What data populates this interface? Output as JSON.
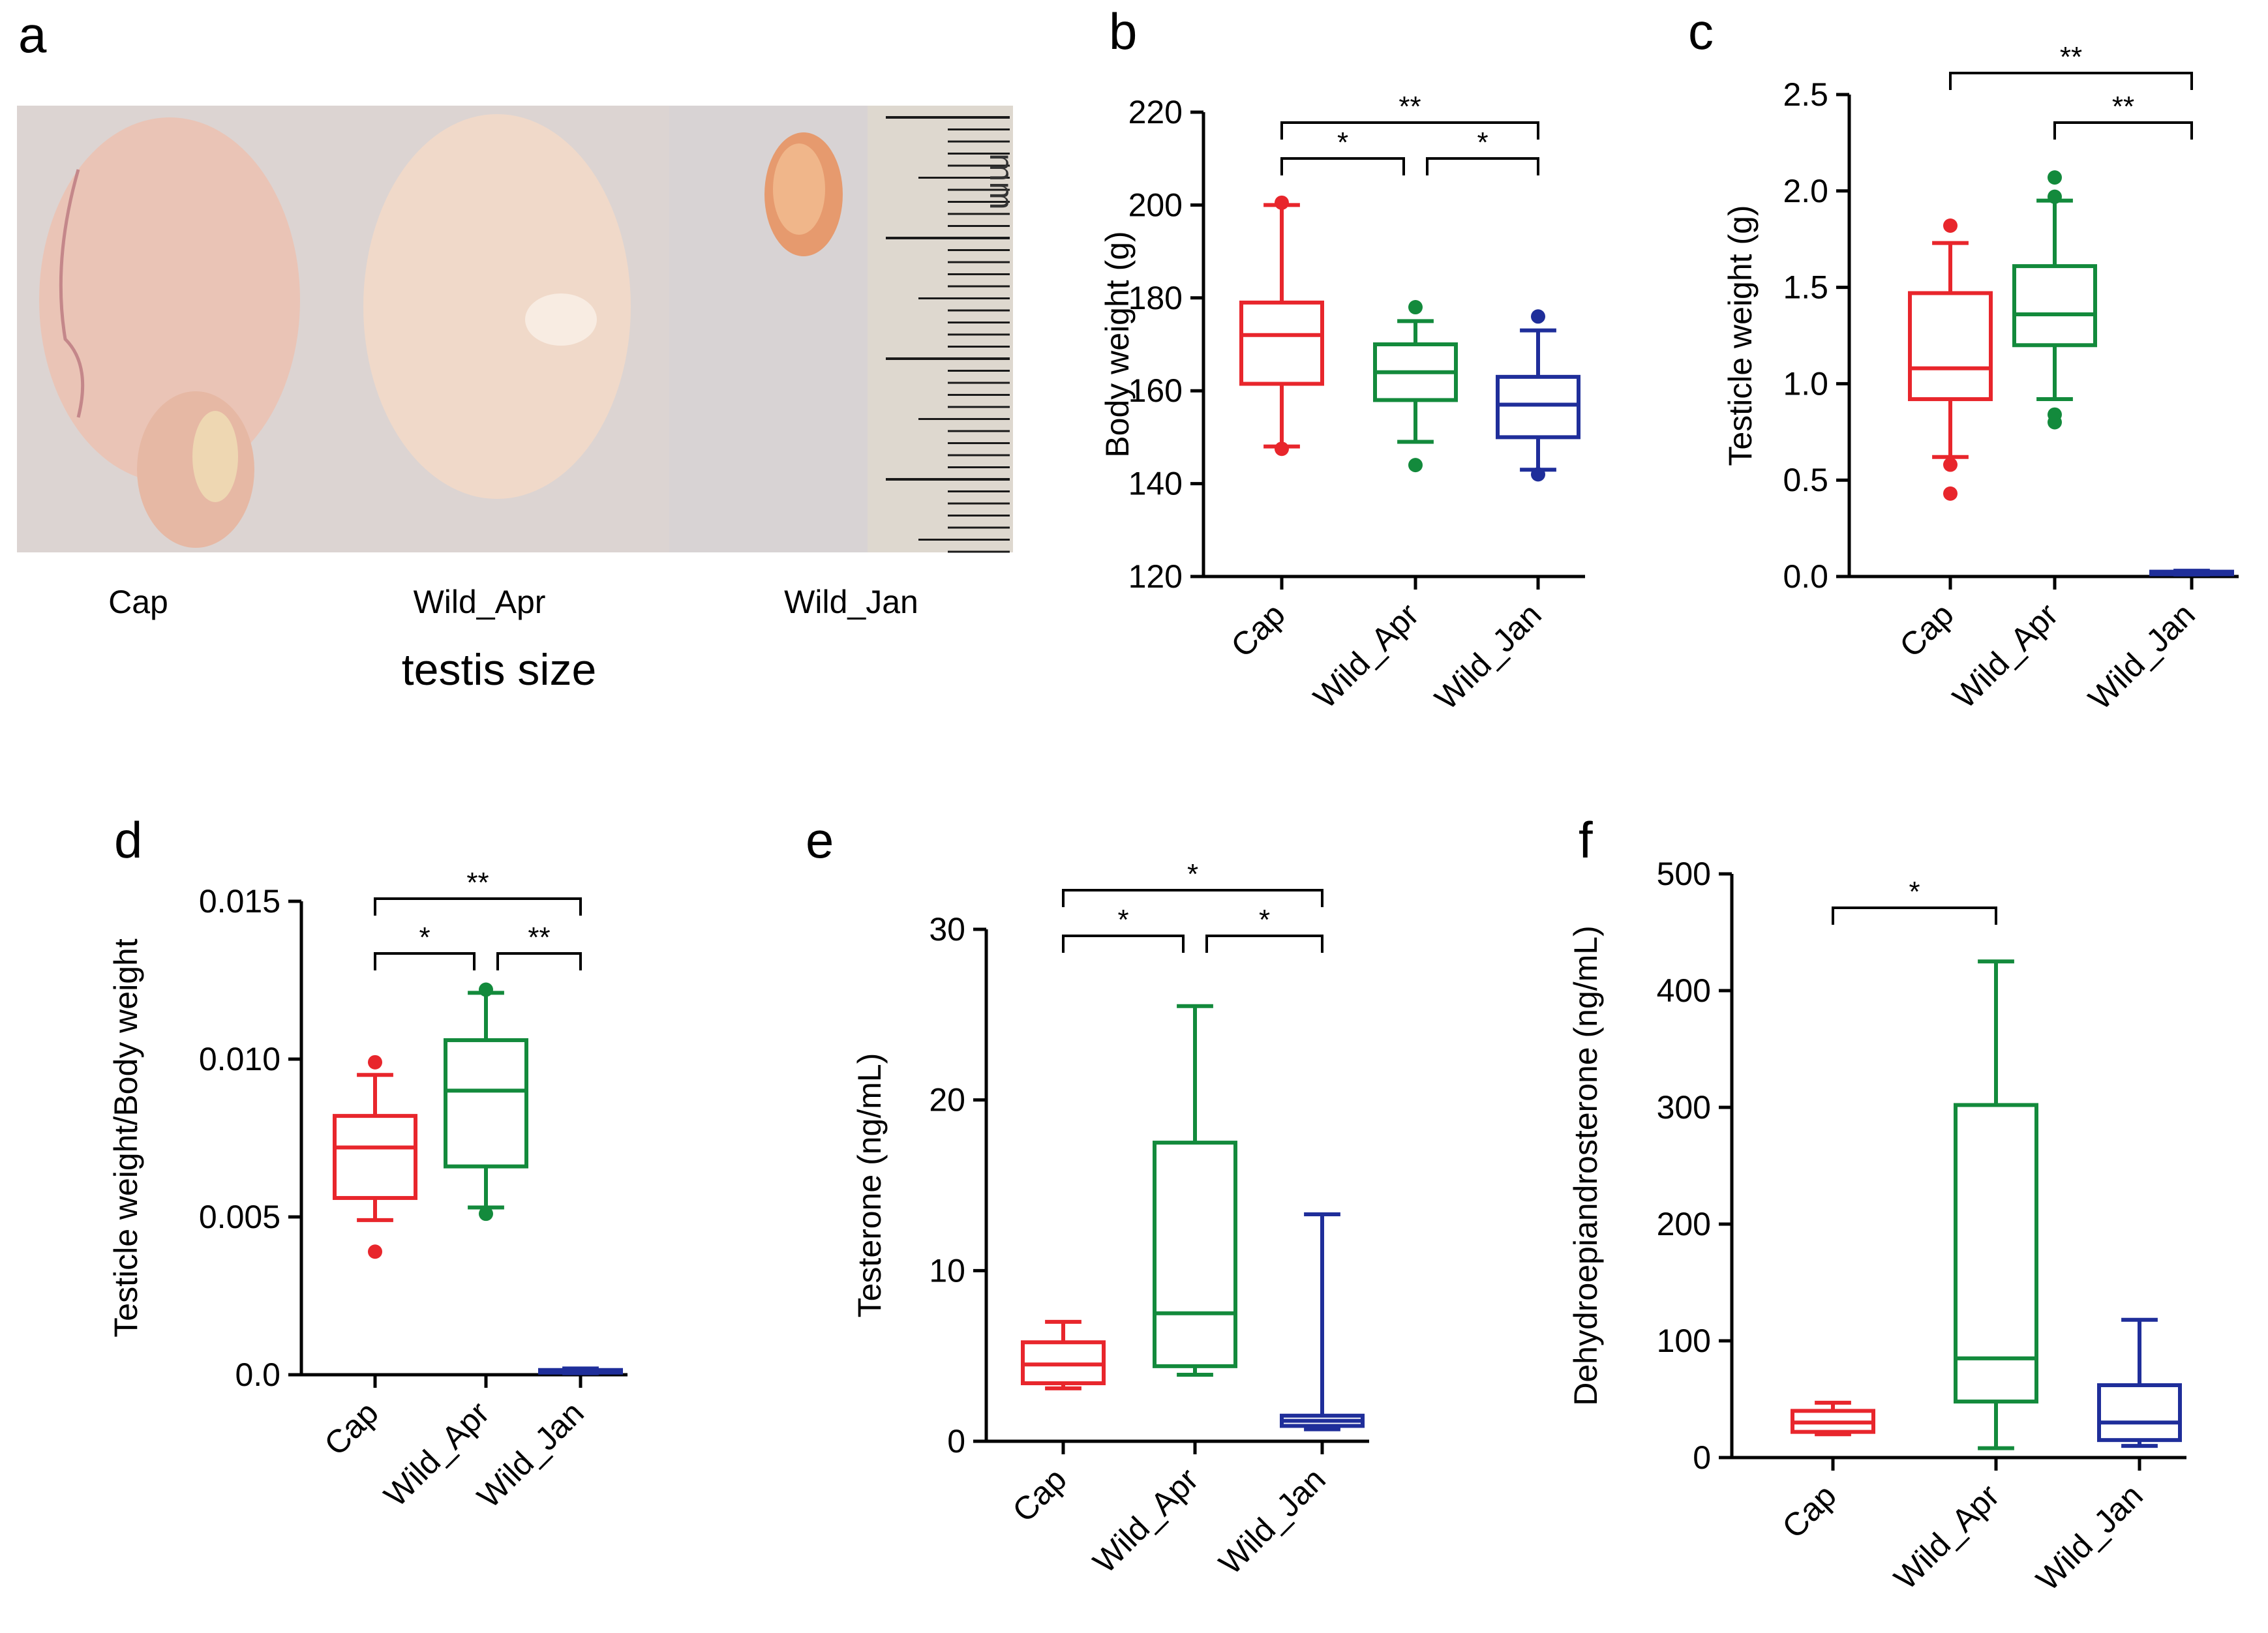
{
  "colors": {
    "Cap": "#e8262c",
    "Wild_Apr": "#138a3c",
    "Wild_Jan": "#1f2e9a",
    "axis": "#000000"
  },
  "panel_a": {
    "letter": "a",
    "caption": "testis size",
    "labels": [
      "Cap",
      "Wild_Apr",
      "Wild_Jan"
    ],
    "ruler_unit": "mm"
  },
  "chart_data": [
    {
      "id": "b",
      "letter": "b",
      "type": "boxplot",
      "ylabel": "Body weight (g)",
      "categories": [
        "Cap",
        "Wild_Apr",
        "Wild_Jan"
      ],
      "ylim": [
        120,
        220
      ],
      "yticks": [
        "120",
        "140",
        "160",
        "180",
        "200",
        "220"
      ],
      "boxes": [
        {
          "group": "Cap",
          "whisker_low": 148,
          "q1": 161.5,
          "median": 172,
          "q3": 179,
          "whisker_high": 200,
          "outliers": [
            147.5,
            200.5
          ]
        },
        {
          "group": "Wild_Apr",
          "whisker_low": 149,
          "q1": 158,
          "median": 164,
          "q3": 170,
          "whisker_high": 175,
          "outliers": [
            144,
            178
          ]
        },
        {
          "group": "Wild_Jan",
          "whisker_low": 143,
          "q1": 150,
          "median": 157,
          "q3": 163,
          "whisker_high": 173,
          "outliers": [
            142,
            176
          ]
        }
      ],
      "brackets": [
        {
          "from": 0,
          "to": 2,
          "label": "**"
        },
        {
          "from": 0,
          "to": 1,
          "label": "*"
        },
        {
          "from": 1,
          "to": 2,
          "label": "*"
        }
      ]
    },
    {
      "id": "c",
      "letter": "c",
      "type": "boxplot",
      "ylabel": "Testicle weight (g)",
      "categories": [
        "Cap",
        "Wild_Apr",
        "Wild_Jan"
      ],
      "ylim": [
        0,
        2.5
      ],
      "yticks": [
        "0.0",
        "0.5",
        "1.0",
        "1.5",
        "2.0",
        "2.5"
      ],
      "boxes": [
        {
          "group": "Cap",
          "whisker_low": 0.62,
          "q1": 0.92,
          "median": 1.08,
          "q3": 1.47,
          "whisker_high": 1.73,
          "outliers": [
            0.43,
            0.58,
            1.82
          ]
        },
        {
          "group": "Wild_Apr",
          "whisker_low": 0.92,
          "q1": 1.2,
          "median": 1.36,
          "q3": 1.61,
          "whisker_high": 1.95,
          "outliers": [
            0.8,
            0.84,
            1.97,
            2.07
          ]
        },
        {
          "group": "Wild_Jan",
          "whisker_low": 0.01,
          "q1": 0.015,
          "median": 0.02,
          "q3": 0.025,
          "whisker_high": 0.03,
          "outliers": []
        }
      ],
      "brackets": [
        {
          "from": 0,
          "to": 2,
          "label": "**"
        },
        {
          "from": 1,
          "to": 2,
          "label": "**"
        }
      ]
    },
    {
      "id": "d",
      "letter": "d",
      "type": "boxplot",
      "ylabel": "Testicle weight/Body weight",
      "categories": [
        "Cap",
        "Wild_Apr",
        "Wild_Jan"
      ],
      "ylim": [
        0,
        0.015
      ],
      "yticks": [
        "0.0",
        "0.005",
        "0.010",
        "0.015"
      ],
      "boxes": [
        {
          "group": "Cap",
          "whisker_low": 0.0049,
          "q1": 0.0056,
          "median": 0.0072,
          "q3": 0.0082,
          "whisker_high": 0.0095,
          "outliers": [
            0.0039,
            0.0099
          ]
        },
        {
          "group": "Wild_Apr",
          "whisker_low": 0.0053,
          "q1": 0.0066,
          "median": 0.009,
          "q3": 0.0106,
          "whisker_high": 0.0121,
          "outliers": [
            0.0051,
            0.0122
          ]
        },
        {
          "group": "Wild_Jan",
          "whisker_low": 5e-05,
          "q1": 0.0001,
          "median": 0.00012,
          "q3": 0.00015,
          "whisker_high": 0.0002,
          "outliers": []
        }
      ],
      "brackets": [
        {
          "from": 0,
          "to": 2,
          "label": "**"
        },
        {
          "from": 0,
          "to": 1,
          "label": "*"
        },
        {
          "from": 1,
          "to": 2,
          "label": "**"
        }
      ]
    },
    {
      "id": "e",
      "letter": "e",
      "type": "boxplot",
      "ylabel": "Testerone  (ng/mL)",
      "categories": [
        "Cap",
        "Wild_Apr",
        "Wild_Jan"
      ],
      "ylim": [
        0,
        30
      ],
      "yticks": [
        "0",
        "10",
        "20",
        "30"
      ],
      "boxes": [
        {
          "group": "Cap",
          "whisker_low": 3.1,
          "q1": 3.4,
          "median": 4.5,
          "q3": 5.8,
          "whisker_high": 7.0,
          "outliers": []
        },
        {
          "group": "Wild_Apr",
          "whisker_low": 3.9,
          "q1": 4.4,
          "median": 7.5,
          "q3": 17.5,
          "whisker_high": 25.5,
          "outliers": []
        },
        {
          "group": "Wild_Jan",
          "whisker_low": 0.7,
          "q1": 0.9,
          "median": 1.2,
          "q3": 1.5,
          "whisker_high": 13.3,
          "outliers": []
        }
      ],
      "brackets": [
        {
          "from": 0,
          "to": 2,
          "label": "*"
        },
        {
          "from": 0,
          "to": 1,
          "label": "*"
        },
        {
          "from": 1,
          "to": 2,
          "label": "*"
        }
      ]
    },
    {
      "id": "f",
      "letter": "f",
      "type": "boxplot",
      "ylabel": "Dehydroepiandrosterone (ng/mL)",
      "categories": [
        "Cap",
        "Wild_Apr",
        "Wild_Jan"
      ],
      "ylim": [
        0,
        500
      ],
      "yticks": [
        "0",
        "100",
        "200",
        "300",
        "400",
        "500"
      ],
      "boxes": [
        {
          "group": "Cap",
          "whisker_low": 20,
          "q1": 22,
          "median": 30,
          "q3": 40,
          "whisker_high": 47,
          "outliers": []
        },
        {
          "group": "Wild_Apr",
          "whisker_low": 8,
          "q1": 48,
          "median": 85,
          "q3": 302,
          "whisker_high": 425,
          "outliers": []
        },
        {
          "group": "Wild_Jan",
          "whisker_low": 10,
          "q1": 15,
          "median": 30,
          "q3": 62,
          "whisker_high": 118,
          "outliers": []
        }
      ],
      "brackets": [
        {
          "from": 0,
          "to": 1,
          "label": "*"
        }
      ]
    }
  ]
}
